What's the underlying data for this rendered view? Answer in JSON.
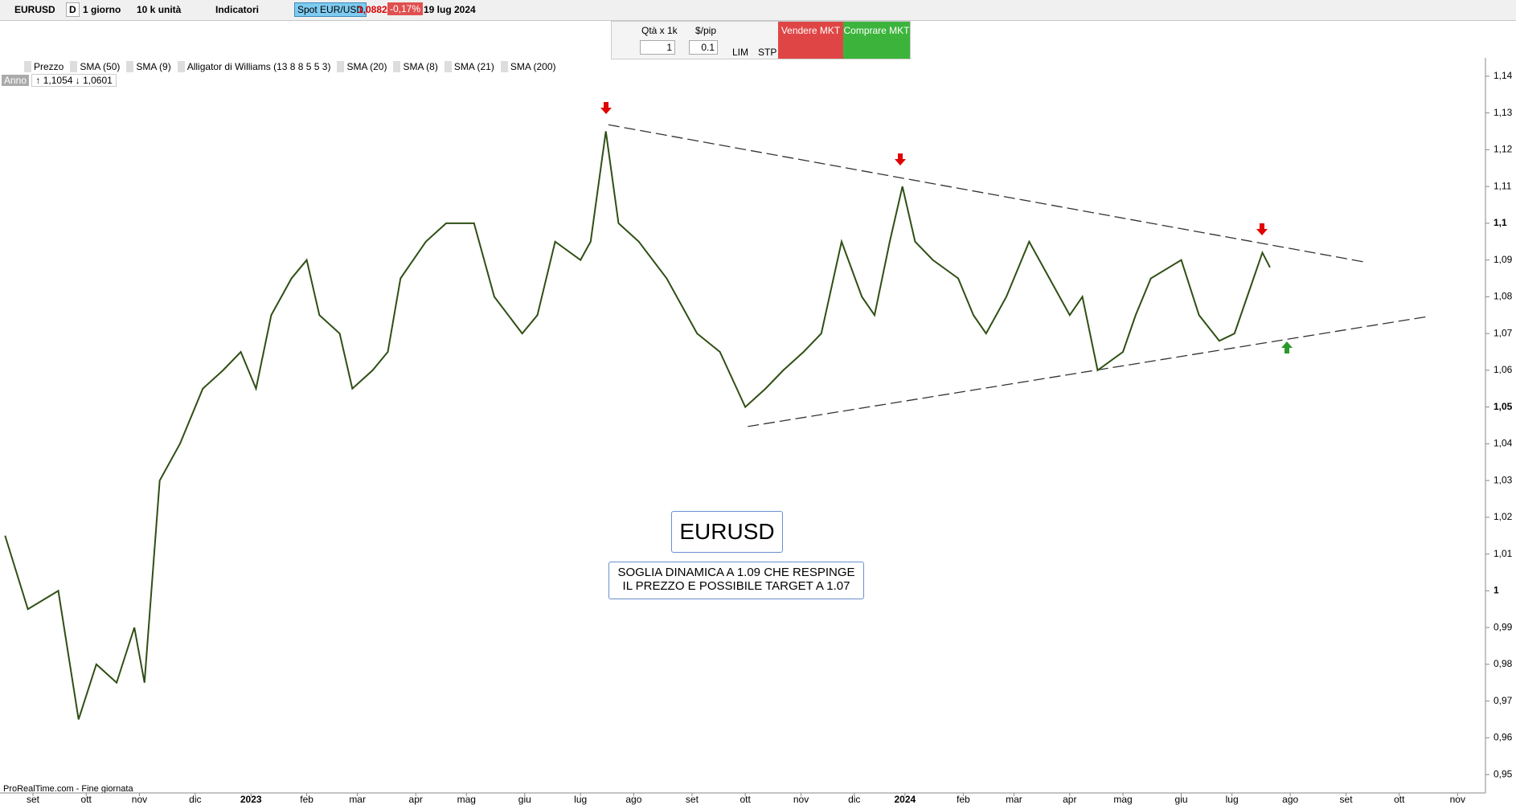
{
  "toolbar": {
    "symbol": "EURUSD",
    "period_flag": "D",
    "timeframe": "1 giorno",
    "size": "10 k unità",
    "indicators": "Indicatori",
    "instrument": "Spot EUR/USD",
    "price": "1,0882",
    "change": "-0,17%",
    "date": "19 lug 2024"
  },
  "trade_panel": {
    "qty_label": "Qtà x 1k",
    "pip_label": "$/pip",
    "qty": "1",
    "pip": "0.1",
    "lim": "LIM",
    "stp": "STP",
    "sell": "Vendere MKT",
    "buy": "Comprare MKT"
  },
  "indicators": [
    "Prezzo",
    "SMA (50)",
    "SMA (9)",
    "Alligator di Williams (13 8 8 5 5 3)",
    "SMA (20)",
    "SMA (8)",
    "SMA (21)",
    "SMA (200)"
  ],
  "range": {
    "label": "Anno",
    "high": "1,1054",
    "low": "1,0601"
  },
  "chart_data": {
    "type": "line",
    "color": "#2f4f14",
    "x": [
      2,
      11,
      23,
      31,
      38,
      46,
      53,
      57,
      63,
      71,
      80,
      88,
      95,
      101,
      107,
      115,
      121,
      126,
      134,
      139,
      147,
      153,
      158,
      168,
      176,
      187,
      195,
      206,
      212,
      219,
      229,
      233,
      239,
      244,
      252,
      263,
      275,
      284,
      294,
      302,
      309,
      317,
      324,
      332,
      340,
      345,
      351,
      356,
      361,
      368,
      378,
      384,
      389,
      397,
      406,
      414,
      422,
      427,
      433,
      443,
      448,
      454,
      466,
      473,
      481,
      487,
      492,
      498,
      501
    ],
    "series": [
      {
        "name": "EURUSD",
        "values": [
          1.015,
          0.995,
          1.0,
          0.965,
          0.98,
          0.975,
          0.99,
          0.975,
          1.03,
          1.04,
          1.055,
          1.06,
          1.065,
          1.055,
          1.075,
          1.085,
          1.09,
          1.075,
          1.07,
          1.055,
          1.06,
          1.065,
          1.085,
          1.095,
          1.1,
          1.1,
          1.08,
          1.07,
          1.075,
          1.095,
          1.09,
          1.095,
          1.125,
          1.1,
          1.095,
          1.085,
          1.07,
          1.065,
          1.05,
          1.055,
          1.06,
          1.065,
          1.07,
          1.095,
          1.08,
          1.075,
          1.095,
          1.11,
          1.095,
          1.09,
          1.085,
          1.075,
          1.07,
          1.08,
          1.095,
          1.085,
          1.075,
          1.08,
          1.06,
          1.065,
          1.075,
          1.085,
          1.09,
          1.075,
          1.068,
          1.07,
          1.08,
          1.092,
          1.088
        ]
      }
    ],
    "trendlines": [
      {
        "x": [
          240,
          538
        ],
        "values": [
          1.1268,
          1.0895
        ]
      },
      {
        "x": [
          295,
          564
        ],
        "values": [
          1.0447,
          1.0747
        ]
      }
    ],
    "xlim": [
      0,
      586
    ],
    "ylim": [
      0.945,
      1.145
    ],
    "xticks": [
      {
        "value": 13,
        "label": "set"
      },
      {
        "value": 34,
        "label": "ott"
      },
      {
        "value": 55,
        "label": "nov"
      },
      {
        "value": 77,
        "label": "dic"
      },
      {
        "value": 99,
        "label": "2023"
      },
      {
        "value": 121,
        "label": "feb"
      },
      {
        "value": 141,
        "label": "mar"
      },
      {
        "value": 164,
        "label": "apr"
      },
      {
        "value": 184,
        "label": "mag"
      },
      {
        "value": 207,
        "label": "giu"
      },
      {
        "value": 229,
        "label": "lug"
      },
      {
        "value": 250,
        "label": "ago"
      },
      {
        "value": 273,
        "label": "set"
      },
      {
        "value": 294,
        "label": "ott"
      },
      {
        "value": 316,
        "label": "nov"
      },
      {
        "value": 337,
        "label": "dic"
      },
      {
        "value": 357,
        "label": "2024"
      },
      {
        "value": 380,
        "label": "feb"
      },
      {
        "value": 400,
        "label": "mar"
      },
      {
        "value": 422,
        "label": "apr"
      },
      {
        "value": 443,
        "label": "mag"
      },
      {
        "value": 466,
        "label": "giu"
      },
      {
        "value": 486,
        "label": "lug"
      },
      {
        "value": 509,
        "label": "ago"
      },
      {
        "value": 531,
        "label": "set"
      },
      {
        "value": 552,
        "label": "ott"
      },
      {
        "value": 575,
        "label": "nov"
      }
    ],
    "yticks": [
      {
        "value": 0.95,
        "label": "0,95"
      },
      {
        "value": 0.96,
        "label": "0,96"
      },
      {
        "value": 0.97,
        "label": "0,97"
      },
      {
        "value": 0.98,
        "label": "0,98"
      },
      {
        "value": 0.99,
        "label": "0,99"
      },
      1,
      {
        "value": 1.01,
        "label": "1,01"
      },
      {
        "value": 1.02,
        "label": "1,02"
      },
      {
        "value": 1.03,
        "label": "1,03"
      },
      {
        "value": 1.04,
        "label": "1,04"
      },
      {
        "value": 1.05,
        "label": "1,05"
      },
      {
        "value": 1.06,
        "label": "1,06"
      },
      {
        "value": 1.07,
        "label": "1,07"
      },
      {
        "value": 1.08,
        "label": "1,08"
      },
      {
        "value": 1.09,
        "label": "1,09"
      },
      {
        "value": 1.1,
        "label": "1,1"
      },
      {
        "value": 1.11,
        "label": "1,11"
      },
      {
        "value": 1.12,
        "label": "1,12"
      },
      {
        "value": 1.13,
        "label": "1,13"
      },
      {
        "value": 1.14,
        "label": "1,14"
      }
    ]
  },
  "annotations": {
    "title": "EURUSD",
    "line1": "SOGLIA DINAMICA A 1.09 CHE RESPINGE",
    "line2": "IL PREZZO E POSSIBILE TARGET A 1.07"
  },
  "footer": "ProRealTime.com - Fine giornata"
}
